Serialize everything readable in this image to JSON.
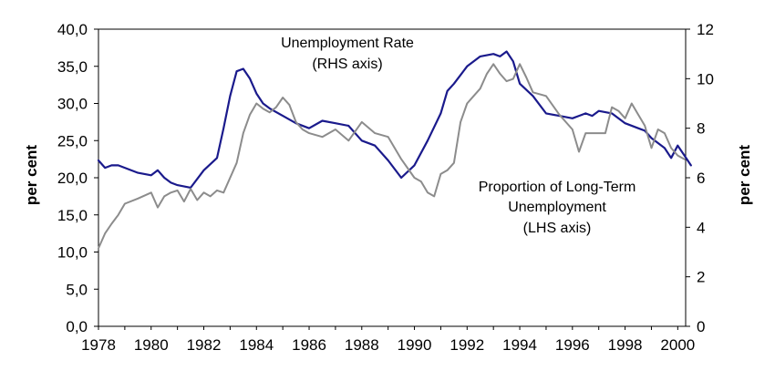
{
  "chart_data": {
    "type": "line",
    "x_ticks": [
      "1978",
      "1980",
      "1982",
      "1984",
      "1986",
      "1988",
      "1990",
      "1992",
      "1994",
      "1996",
      "1998",
      "2000"
    ],
    "left_axis": {
      "label": "per cent",
      "ylim": [
        0,
        40
      ],
      "ticks": [
        "0,0",
        "5,0",
        "10,0",
        "15,0",
        "20,0",
        "25,0",
        "30,0",
        "35,0",
        "40,0"
      ]
    },
    "right_axis": {
      "label": "per cent",
      "ylim": [
        0,
        12
      ],
      "ticks": [
        "0",
        "2",
        "4",
        "6",
        "8",
        "10",
        "12"
      ]
    },
    "annotations": {
      "unemployment": [
        "Unemployment Rate",
        "(RHS axis)"
      ],
      "long_term": [
        "Proportion of Long-Term",
        "Unemployment",
        "(LHS axis)"
      ]
    },
    "series": [
      {
        "name": "Unemployment Rate",
        "axis": "right",
        "color": "#1a1a8c",
        "points": [
          [
            1978.0,
            6.7
          ],
          [
            1978.25,
            6.4
          ],
          [
            1978.5,
            6.5
          ],
          [
            1978.75,
            6.5
          ],
          [
            1979.0,
            6.4
          ],
          [
            1979.5,
            6.2
          ],
          [
            1980.0,
            6.1
          ],
          [
            1980.25,
            6.3
          ],
          [
            1980.5,
            6.0
          ],
          [
            1980.75,
            5.8
          ],
          [
            1981.0,
            5.7
          ],
          [
            1981.5,
            5.6
          ],
          [
            1982.0,
            6.3
          ],
          [
            1982.5,
            6.8
          ],
          [
            1982.75,
            8.0
          ],
          [
            1983.0,
            9.3
          ],
          [
            1983.25,
            10.3
          ],
          [
            1983.5,
            10.4
          ],
          [
            1983.75,
            10.0
          ],
          [
            1984.0,
            9.4
          ],
          [
            1984.25,
            9.0
          ],
          [
            1984.5,
            8.8
          ],
          [
            1985.0,
            8.5
          ],
          [
            1985.5,
            8.2
          ],
          [
            1986.0,
            8.0
          ],
          [
            1986.5,
            8.3
          ],
          [
            1987.0,
            8.2
          ],
          [
            1987.5,
            8.1
          ],
          [
            1988.0,
            7.5
          ],
          [
            1988.5,
            7.3
          ],
          [
            1989.0,
            6.7
          ],
          [
            1989.5,
            6.0
          ],
          [
            1990.0,
            6.5
          ],
          [
            1990.5,
            7.5
          ],
          [
            1991.0,
            8.6
          ],
          [
            1991.25,
            9.5
          ],
          [
            1991.5,
            9.8
          ],
          [
            1992.0,
            10.5
          ],
          [
            1992.5,
            10.9
          ],
          [
            1993.0,
            11.0
          ],
          [
            1993.25,
            10.9
          ],
          [
            1993.5,
            11.1
          ],
          [
            1993.75,
            10.7
          ],
          [
            1994.0,
            9.8
          ],
          [
            1994.5,
            9.3
          ],
          [
            1995.0,
            8.6
          ],
          [
            1995.5,
            8.5
          ],
          [
            1996.0,
            8.4
          ],
          [
            1996.5,
            8.6
          ],
          [
            1996.75,
            8.5
          ],
          [
            1997.0,
            8.7
          ],
          [
            1997.5,
            8.6
          ],
          [
            1998.0,
            8.2
          ],
          [
            1998.5,
            8.0
          ],
          [
            1998.75,
            7.9
          ],
          [
            1999.0,
            7.6
          ],
          [
            1999.5,
            7.2
          ],
          [
            1999.75,
            6.8
          ],
          [
            2000.0,
            7.3
          ],
          [
            2000.25,
            6.9
          ],
          [
            2000.5,
            6.5
          ]
        ]
      },
      {
        "name": "Proportion of Long-Term Unemployment",
        "axis": "left",
        "color": "#8c8c8c",
        "points": [
          [
            1978.0,
            10.5
          ],
          [
            1978.25,
            12.5
          ],
          [
            1978.5,
            13.8
          ],
          [
            1978.75,
            15.0
          ],
          [
            1979.0,
            16.5
          ],
          [
            1979.5,
            17.2
          ],
          [
            1980.0,
            18.0
          ],
          [
            1980.25,
            16.0
          ],
          [
            1980.5,
            17.5
          ],
          [
            1980.75,
            18.0
          ],
          [
            1981.0,
            18.3
          ],
          [
            1981.25,
            16.8
          ],
          [
            1981.5,
            18.5
          ],
          [
            1981.75,
            17.0
          ],
          [
            1982.0,
            18.0
          ],
          [
            1982.25,
            17.5
          ],
          [
            1982.5,
            18.3
          ],
          [
            1982.75,
            18.0
          ],
          [
            1983.0,
            20.0
          ],
          [
            1983.25,
            22.0
          ],
          [
            1983.5,
            26.0
          ],
          [
            1983.75,
            28.5
          ],
          [
            1984.0,
            30.0
          ],
          [
            1984.25,
            29.3
          ],
          [
            1984.5,
            28.8
          ],
          [
            1984.75,
            29.5
          ],
          [
            1985.0,
            30.8
          ],
          [
            1985.25,
            29.8
          ],
          [
            1985.5,
            27.5
          ],
          [
            1985.75,
            26.5
          ],
          [
            1986.0,
            26.0
          ],
          [
            1986.5,
            25.5
          ],
          [
            1987.0,
            26.5
          ],
          [
            1987.5,
            25.0
          ],
          [
            1988.0,
            27.5
          ],
          [
            1988.5,
            26.0
          ],
          [
            1989.0,
            25.5
          ],
          [
            1989.5,
            22.5
          ],
          [
            1990.0,
            20.0
          ],
          [
            1990.25,
            19.5
          ],
          [
            1990.5,
            18.0
          ],
          [
            1990.75,
            17.5
          ],
          [
            1991.0,
            20.5
          ],
          [
            1991.25,
            21.0
          ],
          [
            1991.5,
            22.0
          ],
          [
            1991.75,
            27.5
          ],
          [
            1992.0,
            30.0
          ],
          [
            1992.25,
            31.0
          ],
          [
            1992.5,
            32.0
          ],
          [
            1992.75,
            34.0
          ],
          [
            1993.0,
            35.3
          ],
          [
            1993.25,
            34.0
          ],
          [
            1993.5,
            33.0
          ],
          [
            1993.75,
            33.3
          ],
          [
            1994.0,
            35.3
          ],
          [
            1994.25,
            33.5
          ],
          [
            1994.5,
            31.5
          ],
          [
            1995.0,
            31.0
          ],
          [
            1995.5,
            28.5
          ],
          [
            1996.0,
            26.5
          ],
          [
            1996.25,
            23.5
          ],
          [
            1996.5,
            26.0
          ],
          [
            1997.0,
            26.0
          ],
          [
            1997.25,
            26.0
          ],
          [
            1997.5,
            29.5
          ],
          [
            1997.75,
            29.0
          ],
          [
            1998.0,
            28.0
          ],
          [
            1998.25,
            30.0
          ],
          [
            1998.5,
            28.5
          ],
          [
            1998.75,
            27.0
          ],
          [
            1999.0,
            24.0
          ],
          [
            1999.25,
            26.5
          ],
          [
            1999.5,
            26.0
          ],
          [
            1999.75,
            24.0
          ],
          [
            2000.0,
            23.0
          ],
          [
            2000.25,
            22.5
          ]
        ]
      }
    ]
  }
}
